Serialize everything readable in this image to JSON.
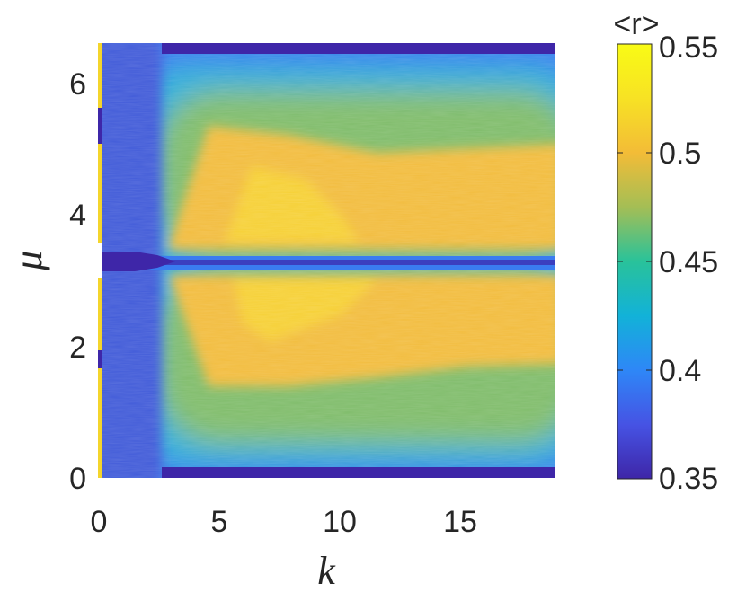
{
  "chart_data": {
    "type": "heatmap",
    "title": "",
    "xlabel": "k",
    "ylabel": "μ",
    "xlim": [
      0,
      19
    ],
    "ylim": [
      0,
      6.283
    ],
    "xticks": [
      0,
      5,
      10,
      15
    ],
    "yticks": [
      0,
      2,
      4,
      6
    ],
    "colorbar": {
      "label": "<r>",
      "limits": [
        0.35,
        0.55
      ],
      "ticks": [
        "0.35",
        "0.4",
        "0.45",
        "0.5",
        "0.55"
      ],
      "colormap": "parula",
      "colors": [
        "#3e26a8",
        "#4653e4",
        "#2e87f7",
        "#12b2d8",
        "#29c29a",
        "#a4be55",
        "#f3bc37",
        "#f7e224",
        "#f9fb15"
      ]
    },
    "regions": [
      {
        "description": "bottom edge band mu≈0",
        "value": 0.36
      },
      {
        "description": "low-k strip k<1",
        "value": 0.39
      },
      {
        "description": "central line mu≈pi",
        "value": 0.4
      },
      {
        "description": "core region k>4, mu in [1.5,2.8] and [3.4,5]",
        "value": 0.52
      },
      {
        "description": "transition ring",
        "value": 0.47
      },
      {
        "description": "top edge band mu≈2pi",
        "value": 0.36
      }
    ]
  }
}
